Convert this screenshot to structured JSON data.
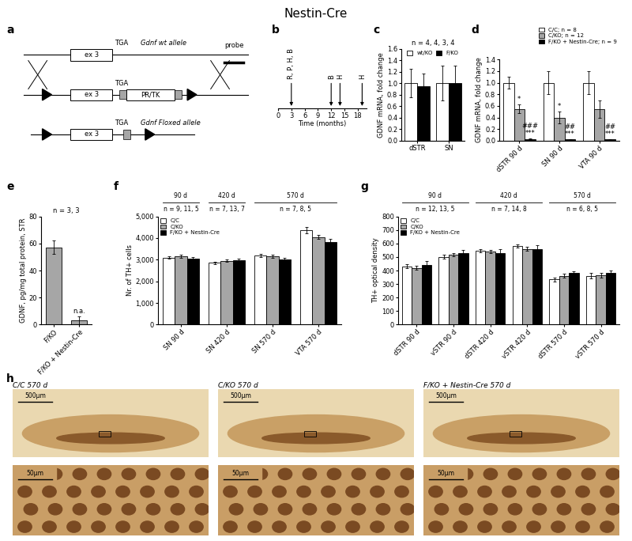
{
  "title": "Nestin-Cre",
  "diagram": {
    "panel": "a",
    "rows": [
      {
        "exon": "ex 3",
        "stop": "TGA",
        "name": "Gdnf wt allele",
        "probe": "probe"
      },
      {
        "exon": "ex 3",
        "stop": "TGA",
        "cassette": "PR/TK"
      },
      {
        "exon": "ex 3",
        "stop": "TGA",
        "name": "Gdnf Floxed allele"
      }
    ]
  },
  "chart_data": [
    {
      "panel": "b",
      "type": "timeline",
      "xlabel": "Time (months)",
      "xlim": [
        0,
        20
      ],
      "xticks": [
        0,
        3,
        6,
        9,
        12,
        15,
        18
      ],
      "tick_labels": "x",
      "events": [
        {
          "x": 3,
          "label": "R, P, H, B"
        },
        {
          "x": 12,
          "label": "B"
        },
        {
          "x": 14,
          "label": "H"
        },
        {
          "x": 19,
          "label": "H"
        }
      ]
    },
    {
      "panel": "c",
      "type": "bar",
      "subtitle": "n = 4, 4, 3, 4",
      "ylabel": "GDNF mRNA, fold change",
      "categories": [
        "dSTR",
        "SN"
      ],
      "series": [
        {
          "name": "wt/KO",
          "color": "#ffffff",
          "values": [
            1.0,
            1.0
          ],
          "errors": [
            0.25,
            0.3
          ]
        },
        {
          "name": "F/KO",
          "color": "#000000",
          "values": [
            0.95,
            1.0
          ],
          "errors": [
            0.22,
            0.3
          ]
        }
      ],
      "ylim": [
        0.0,
        1.6
      ],
      "yticks": [
        0.0,
        0.2,
        0.4,
        0.6,
        0.8,
        1.0,
        1.2,
        1.4,
        1.6
      ],
      "legend": "upper center"
    },
    {
      "panel": "d",
      "type": "bar",
      "ylabel": "GDNF mRNA, fold change",
      "categories": [
        "dSTR 90 d",
        "SN 90 d",
        "VTA 90 d"
      ],
      "series": [
        {
          "name": "C/C; n = 8",
          "color": "#ffffff",
          "values": [
            1.0,
            1.0,
            1.0
          ],
          "errors": [
            0.1,
            0.2,
            0.2
          ]
        },
        {
          "name": "C/KO; n = 12",
          "color": "#a6a6a6",
          "values": [
            0.55,
            0.4,
            0.55
          ],
          "errors": [
            0.08,
            0.1,
            0.15
          ]
        },
        {
          "name": "F/KO + Nestin-Cre; n = 9",
          "color": "#000000",
          "values": [
            0.03,
            0.02,
            0.02
          ],
          "errors": [
            0.01,
            0.01,
            0.01
          ]
        }
      ],
      "annotations": [
        {
          "category": 0,
          "series": 1,
          "text": "*"
        },
        {
          "category": 0,
          "series": 2,
          "text": "***"
        },
        {
          "category": 0,
          "series": 2,
          "text": "###"
        },
        {
          "category": 1,
          "series": 1,
          "text": "*"
        },
        {
          "category": 1,
          "series": 2,
          "text": "***"
        },
        {
          "category": 1,
          "series": 2,
          "text": "##"
        },
        {
          "category": 2,
          "series": 2,
          "text": "***"
        },
        {
          "category": 2,
          "series": 2,
          "text": "##"
        }
      ],
      "ylim": [
        0.0,
        1.4
      ],
      "yticks": [
        0.0,
        0.2,
        0.4,
        0.6,
        0.8,
        1.0,
        1.2,
        1.4
      ],
      "legend": "upper right"
    },
    {
      "panel": "e",
      "type": "bar",
      "subtitle": "n = 3, 3",
      "ylabel": "GDNF, pg/mg total protein, STR",
      "categories": [
        "F/KO",
        "F/KO + Nestin-Cre"
      ],
      "values": [
        57,
        3
      ],
      "errors": [
        5,
        3
      ],
      "color": "#a6a6a6",
      "annotations": [
        {
          "category": 1,
          "text": "n.a."
        }
      ],
      "ylim": [
        0,
        80
      ],
      "yticks": [
        0,
        20,
        40,
        60,
        80
      ]
    },
    {
      "panel": "f",
      "type": "bar",
      "ylabel": "Nr. of TH+ cells",
      "categories": [
        "SN 90 d",
        "SN 420 d",
        "SN 570 d",
        "VTA 570 d"
      ],
      "series": [
        {
          "name": "C/C",
          "color": "#ffffff",
          "values": [
            3100,
            2850,
            3200,
            4350
          ],
          "errors": [
            60,
            60,
            80,
            150
          ]
        },
        {
          "name": "C/KO",
          "color": "#a6a6a6",
          "values": [
            3150,
            2950,
            3150,
            4050
          ],
          "errors": [
            80,
            50,
            80,
            100
          ]
        },
        {
          "name": "F/KO + Nestin-Cre",
          "color": "#000000",
          "values": [
            3050,
            2980,
            3000,
            3800
          ],
          "errors": [
            60,
            60,
            100,
            150
          ]
        }
      ],
      "groups": [
        {
          "label": "90 d",
          "n": "n = 9, 11, 5",
          "span": [
            0,
            0
          ]
        },
        {
          "label": "420 d",
          "n": "n = 7, 13, 7",
          "span": [
            1,
            1
          ]
        },
        {
          "label": "570 d",
          "n": "n = 7, 8, 5",
          "span": [
            2,
            3
          ]
        }
      ],
      "ylim": [
        0,
        5000
      ],
      "yticks": [
        0,
        {
          "value": 1000,
          "label": "1,000"
        },
        {
          "value": 2000,
          "label": "2,000"
        },
        {
          "value": 3000,
          "label": "3,000"
        },
        {
          "value": 4000,
          "label": "4,000"
        },
        {
          "value": 5000,
          "label": "5,000"
        }
      ],
      "legend": "upper left"
    },
    {
      "panel": "g",
      "type": "bar",
      "ylabel": "TH+ optical density",
      "categories": [
        "dSTR 90 d",
        "vSTR 90 d",
        "dSTR 420 d",
        "vSTR 420 d",
        "dSTR 570 d",
        "vSTR 570 d"
      ],
      "series": [
        {
          "name": "C/C",
          "color": "#ffffff",
          "values": [
            430,
            500,
            545,
            580,
            335,
            360
          ],
          "errors": [
            15,
            15,
            12,
            12,
            15,
            20
          ]
        },
        {
          "name": "C/KO",
          "color": "#a6a6a6",
          "values": [
            420,
            515,
            540,
            560,
            360,
            365
          ],
          "errors": [
            15,
            12,
            10,
            15,
            15,
            15
          ]
        },
        {
          "name": "F/KO + Nestin-Cre",
          "color": "#000000",
          "values": [
            440,
            530,
            530,
            555,
            385,
            385
          ],
          "errors": [
            30,
            20,
            25,
            30,
            10,
            15
          ]
        }
      ],
      "groups": [
        {
          "label": "90 d",
          "n": "n = 12, 13, 5",
          "span": [
            0,
            1
          ]
        },
        {
          "label": "420 d",
          "n": "n = 7, 14, 8",
          "span": [
            2,
            3
          ]
        },
        {
          "label": "570 d",
          "n": "n = 6, 8, 5",
          "span": [
            4,
            5
          ]
        }
      ],
      "ylim": [
        0,
        800
      ],
      "yticks": [
        0,
        100,
        200,
        300,
        400,
        500,
        600,
        700,
        800
      ],
      "legend": "upper left"
    }
  ],
  "images": {
    "panel": "h",
    "items": [
      {
        "title": "C/C 570 d",
        "scale_top": "500µm",
        "scale_bottom": "50µm"
      },
      {
        "title": "C/KO 570 d",
        "scale_top": "500µm",
        "scale_bottom": "50µm"
      },
      {
        "title": "F/KO + Nestin-Cre 570 d",
        "scale_top": "500µm",
        "scale_bottom": "50µm"
      }
    ]
  }
}
